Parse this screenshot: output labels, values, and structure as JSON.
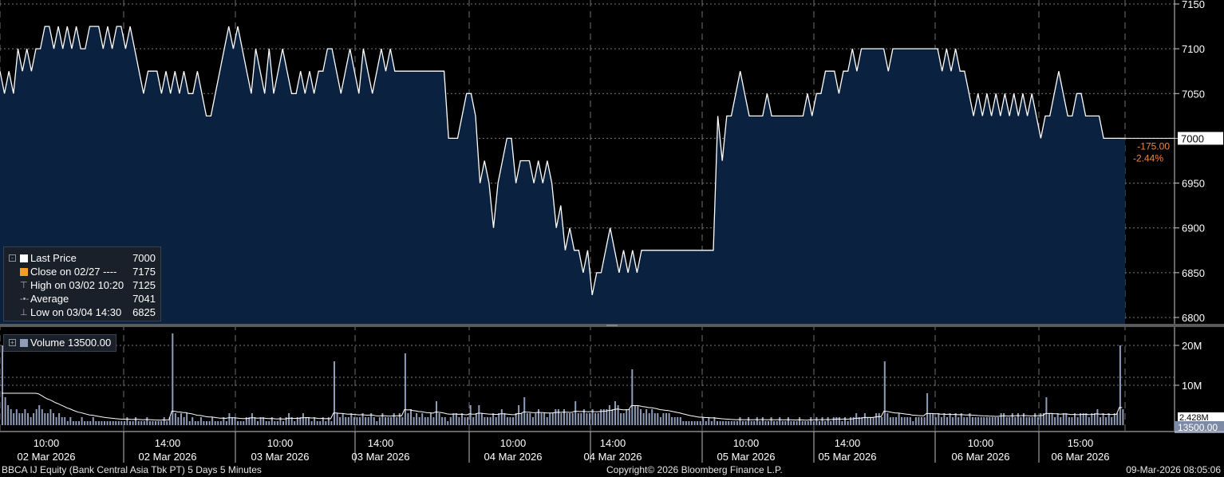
{
  "footer": {
    "left": "BBCA IJ Equity (Bank Central Asia Tbk PT) 5 Days 5 Minutes",
    "center": "Copyright© 2026 Bloomberg Finance L.P.",
    "right": "09-Mar-2026 08:05:06"
  },
  "price_legend": {
    "last_label": "Last Price",
    "last_value": "7000",
    "close_label": "Close on 02/27 ----",
    "close_value": "7175",
    "high_label": "High on 03/02 10:20",
    "high_value": "7125",
    "avg_label": "Average",
    "avg_value": "7041",
    "low_label": "Low on 03/04 14:30",
    "low_value": "6825"
  },
  "volume_legend": {
    "label": "Volume 13500.00"
  },
  "change": {
    "abs": "-175.00",
    "pct": "-2.44%"
  },
  "last_price_tag": "7000",
  "last_volume_tag": "13500.00",
  "avg_volume_tag": "2.428M",
  "colors": {
    "area": "#0b2140",
    "line": "#ffffff",
    "vol_bar": "#8f9cb8",
    "change": "#f0883e",
    "grid": "#8a8a8a"
  },
  "chart_data": {
    "type": "area",
    "price_axis": {
      "ticks": [
        7150,
        7100,
        7050,
        7000,
        6950,
        6900,
        6850,
        6800
      ],
      "range": [
        6800,
        7150
      ]
    },
    "volume_axis": {
      "ticks": [
        "20M",
        "10M"
      ],
      "tick_values": [
        20000000,
        10000000
      ],
      "range": [
        0,
        24000000
      ]
    },
    "x_tick_labels": [
      {
        "time": "10:00",
        "date": "02 Mar 2026"
      },
      {
        "time": "14:00",
        "date": "02 Mar 2026"
      },
      {
        "time": "10:00",
        "date": "03 Mar 2026"
      },
      {
        "time": "14:00",
        "date": "03 Mar 2026"
      },
      {
        "time": "10:00",
        "date": "04 Mar 2026"
      },
      {
        "time": "14:00",
        "date": "04 Mar 2026"
      },
      {
        "time": "10:00",
        "date": "05 Mar 2026"
      },
      {
        "time": "14:00",
        "date": "05 Mar 2026"
      },
      {
        "time": "10:00",
        "date": "06 Mar 2026"
      },
      {
        "time": "15:00",
        "date": "06 Mar 2026"
      }
    ],
    "last_price": 7000,
    "price_series": [
      7075,
      7050,
      7075,
      7050,
      7100,
      7075,
      7100,
      7075,
      7100,
      7100,
      7125,
      7125,
      7100,
      7125,
      7100,
      7125,
      7100,
      7125,
      7100,
      7100,
      7125,
      7125,
      7125,
      7100,
      7125,
      7100,
      7125,
      7125,
      7100,
      7125,
      7100,
      7075,
      7050,
      7075,
      7075,
      7075,
      7050,
      7075,
      7050,
      7075,
      7050,
      7075,
      7050,
      7050,
      7075,
      7050,
      7025,
      7025,
      7050,
      7075,
      7100,
      7125,
      7100,
      7125,
      7100,
      7075,
      7050,
      7100,
      7075,
      7050,
      7100,
      7050,
      7075,
      7100,
      7075,
      7050,
      7050,
      7075,
      7050,
      7075,
      7050,
      7075,
      7075,
      7100,
      7100,
      7075,
      7050,
      7075,
      7100,
      7075,
      7050,
      7100,
      7075,
      7050,
      7075,
      7100,
      7075,
      7100,
      7075,
      7075,
      7075,
      7075,
      7075,
      7075,
      7075,
      7075,
      7075,
      7075,
      7075,
      7075,
      7000,
      7000,
      7000,
      7025,
      7050,
      7050,
      7025,
      6950,
      6975,
      6950,
      6900,
      6950,
      6975,
      7000,
      7000,
      6950,
      6975,
      6975,
      6975,
      6950,
      6975,
      6950,
      6975,
      6950,
      6900,
      6925,
      6875,
      6900,
      6875,
      6875,
      6850,
      6875,
      6825,
      6850,
      6850,
      6875,
      6900,
      6875,
      6850,
      6875,
      6850,
      6875,
      6850,
      6875,
      6875,
      6875,
      6875,
      6875,
      6875,
      6875,
      6875,
      6875,
      6875,
      6875,
      6875,
      6875,
      6875,
      6875,
      6875,
      6875,
      7025,
      6975,
      7025,
      7025,
      7050,
      7075,
      7050,
      7025,
      7025,
      7025,
      7025,
      7050,
      7025,
      7025,
      7025,
      7025,
      7025,
      7025,
      7025,
      7025,
      7050,
      7025,
      7050,
      7050,
      7075,
      7075,
      7075,
      7050,
      7075,
      7075,
      7100,
      7075,
      7100,
      7100,
      7100,
      7100,
      7100,
      7100,
      7075,
      7100,
      7100,
      7100,
      7100,
      7100,
      7100,
      7100,
      7100,
      7100,
      7100,
      7100,
      7075,
      7100,
      7075,
      7100,
      7075,
      7075,
      7050,
      7025,
      7050,
      7025,
      7050,
      7025,
      7050,
      7025,
      7050,
      7025,
      7050,
      7025,
      7050,
      7025,
      7050,
      7025,
      7000,
      7025,
      7025,
      7050,
      7075,
      7050,
      7025,
      7025,
      7050,
      7050,
      7025,
      7025,
      7025,
      7025,
      7000,
      7000,
      7000,
      7000
    ],
    "volume_series": [
      20,
      7,
      5,
      4,
      3,
      4,
      3,
      3,
      4,
      3,
      2,
      3,
      4,
      5,
      4,
      3,
      3,
      4,
      3,
      2,
      3,
      2,
      2,
      1,
      2,
      1,
      1,
      1,
      2,
      1,
      1,
      1,
      2,
      1,
      1,
      1,
      1,
      1,
      1,
      1,
      1,
      1,
      1,
      1,
      2,
      1,
      1,
      2,
      1,
      1,
      1,
      2,
      1,
      1,
      1,
      1,
      1,
      2,
      1,
      2,
      23,
      3,
      2,
      3,
      2,
      3,
      1,
      2,
      1,
      1,
      2,
      1,
      1,
      1,
      2,
      1,
      1,
      1,
      2,
      1,
      3,
      2,
      2,
      1,
      1,
      1,
      2,
      2,
      3,
      2,
      1,
      2,
      2,
      1,
      1,
      2,
      1,
      1,
      2,
      1,
      2,
      3,
      2,
      1,
      2,
      2,
      3,
      2,
      2,
      1,
      2,
      1,
      1,
      2,
      1,
      2,
      1,
      16,
      3,
      2,
      3,
      2,
      2,
      3,
      2,
      2,
      2,
      3,
      2,
      2,
      3,
      2,
      1,
      2,
      3,
      2,
      2,
      2,
      3,
      2,
      3,
      2,
      18,
      3,
      4,
      2,
      3,
      2,
      3,
      2,
      2,
      3,
      2,
      6,
      3,
      2,
      2,
      1,
      2,
      3,
      3,
      2,
      3,
      2,
      2,
      5,
      2,
      3,
      5,
      3,
      2,
      2,
      2,
      3,
      2,
      3,
      4,
      3,
      2,
      2,
      2,
      3,
      5,
      3,
      7,
      3,
      3,
      2,
      3,
      4,
      3,
      3,
      2,
      3,
      3,
      4,
      4,
      3,
      4,
      3,
      3,
      3,
      6,
      3,
      3,
      4,
      3,
      3,
      4,
      3,
      3,
      4,
      4,
      4,
      5,
      4,
      6,
      5,
      3,
      3,
      4,
      4,
      14,
      5,
      5,
      4,
      3,
      4,
      3,
      4,
      3,
      3,
      2,
      3,
      3,
      3,
      2,
      2,
      2,
      2,
      1,
      1,
      1,
      1,
      1,
      1,
      1,
      2,
      1,
      2,
      1,
      2,
      1,
      1,
      1,
      1,
      1,
      1,
      1,
      1,
      2,
      1,
      1,
      2,
      1,
      1,
      2,
      1,
      2,
      1,
      1,
      2,
      1,
      1,
      2,
      1,
      1,
      2,
      1,
      1,
      1,
      2,
      1,
      1,
      1,
      2,
      1,
      2,
      1,
      2,
      1,
      2,
      1,
      2,
      2,
      2,
      1,
      2,
      1,
      2,
      2,
      3,
      2,
      2,
      3,
      2,
      2,
      2,
      3,
      3,
      2,
      16,
      3,
      2,
      2,
      2,
      3,
      2,
      2,
      2,
      2,
      1,
      2,
      2,
      2,
      2,
      8,
      3,
      3,
      2,
      3,
      2,
      3,
      2,
      3,
      2,
      3,
      2,
      3,
      2,
      2,
      3,
      2,
      2,
      2,
      2,
      2,
      2,
      2,
      2,
      2,
      2,
      3,
      3,
      2,
      2,
      3,
      2,
      3,
      2,
      3,
      2,
      2,
      2,
      3,
      2,
      3,
      3,
      7,
      3,
      3,
      2,
      3,
      2,
      3,
      3,
      2,
      2,
      3,
      2,
      3,
      3,
      3,
      2,
      3,
      3,
      4,
      2,
      3,
      2,
      3,
      2,
      3,
      3,
      20,
      4
    ]
  }
}
